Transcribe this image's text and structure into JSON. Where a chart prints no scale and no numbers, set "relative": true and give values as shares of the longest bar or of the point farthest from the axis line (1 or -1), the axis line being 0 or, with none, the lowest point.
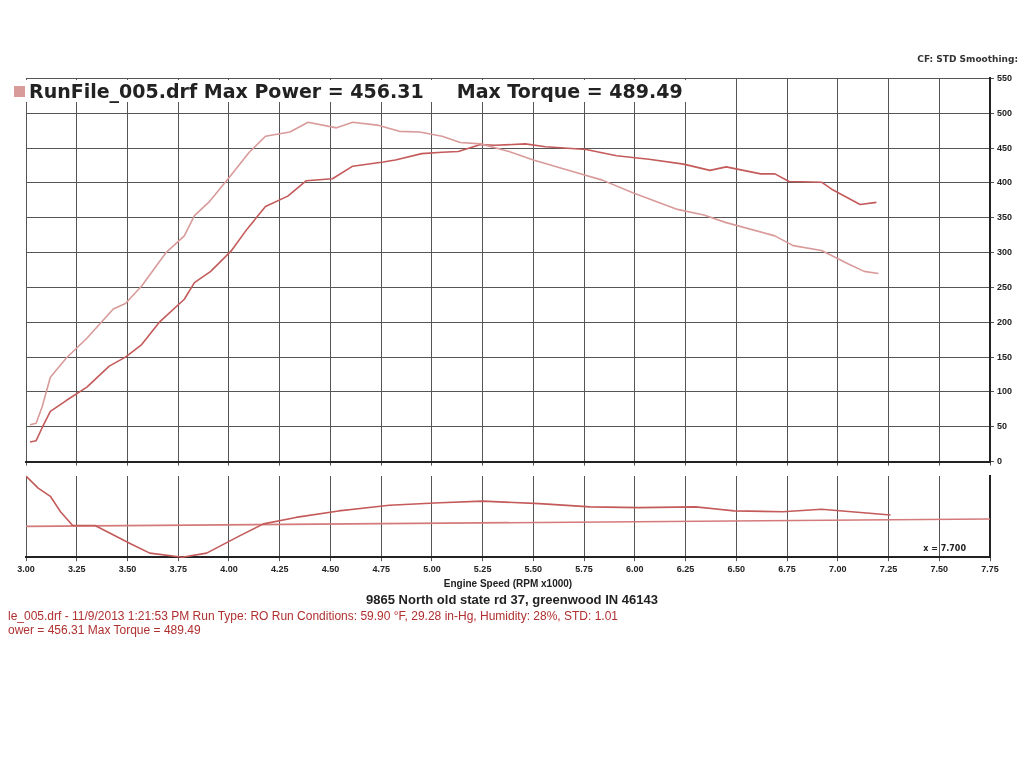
{
  "chart_data": [
    {
      "type": "line",
      "title": "RunFile_005.drf Max Power = 456.31     Max Torque = 489.49",
      "annotations": [
        "CF: STD  Smoothing:"
      ],
      "xlim": [
        3,
        7.75
      ],
      "xticks": [
        {
          "value": 3,
          "label": null
        },
        {
          "value": 3.25,
          "label": null
        },
        {
          "value": 3.5,
          "label": null
        },
        {
          "value": 3.75,
          "label": null
        },
        {
          "value": 4,
          "label": null
        },
        {
          "value": 4.25,
          "label": null
        },
        {
          "value": 4.5,
          "label": null
        },
        {
          "value": 4.75,
          "label": null
        },
        {
          "value": 5,
          "label": null
        },
        {
          "value": 5.25,
          "label": null
        },
        {
          "value": 5.5,
          "label": null
        },
        {
          "value": 5.75,
          "label": null
        },
        {
          "value": 6,
          "label": null
        },
        {
          "value": 6.25,
          "label": null
        },
        {
          "value": 6.5,
          "label": null
        },
        {
          "value": 6.75,
          "label": null
        },
        {
          "value": 7,
          "label": null
        },
        {
          "value": 7.25,
          "label": null
        },
        {
          "value": 7.5,
          "label": null
        },
        {
          "value": 7.75,
          "label": null
        }
      ],
      "ylim": [
        0,
        550
      ],
      "yticks": [
        0,
        50,
        100,
        150,
        200,
        250,
        300,
        350,
        400,
        450,
        500,
        550
      ],
      "tick_labels": "y",
      "grid": true,
      "marker": "none",
      "line_style": "solid",
      "series": [
        {
          "color": "#d99a9a",
          "x": [
            3.02,
            3.05,
            3.08,
            3.12,
            3.2,
            3.3,
            3.43,
            3.49,
            3.57,
            3.69,
            3.78,
            3.83,
            3.9,
            4.01,
            4.1,
            4.18,
            4.3,
            4.39,
            4.53,
            4.61,
            4.73,
            4.84,
            4.94,
            5.05,
            5.14,
            5.24,
            5.38,
            5.5,
            5.71,
            5.84,
            5.99,
            6.21,
            6.34,
            6.45,
            6.69,
            6.78,
            6.92,
            7.05,
            7.13,
            7.2
          ],
          "values": [
            53,
            55,
            79,
            121,
            149,
            177,
            219,
            227,
            252,
            300,
            324,
            353,
            372,
            411,
            444,
            467,
            473,
            487,
            479,
            487,
            483,
            474,
            473,
            467,
            458,
            456,
            445,
            433,
            415,
            404,
            386,
            362,
            354,
            343,
            324,
            310,
            303,
            284,
            273,
            270
          ]
        },
        {
          "color": "#c45a5a",
          "x": [
            3.02,
            3.05,
            3.08,
            3.12,
            3.2,
            3.3,
            3.41,
            3.49,
            3.57,
            3.66,
            3.78,
            3.83,
            3.91,
            4.01,
            4.09,
            4.18,
            4.29,
            4.38,
            4.51,
            4.61,
            4.76,
            4.82,
            4.95,
            5.05,
            5.13,
            5.24,
            5.31,
            5.46,
            5.56,
            5.76,
            5.91,
            6.07,
            6.24,
            6.37,
            6.45,
            6.62,
            6.69,
            6.76,
            6.92,
            6.97,
            7.11,
            7.19
          ],
          "values": [
            28,
            30,
            49,
            72,
            88,
            107,
            137,
            150,
            168,
            201,
            233,
            257,
            273,
            302,
            334,
            366,
            381,
            403,
            406,
            424,
            430,
            433,
            442,
            444,
            445,
            455,
            454,
            456,
            452,
            448,
            439,
            434,
            427,
            418,
            423,
            413,
            413,
            402,
            401,
            391,
            369,
            372
          ]
        }
      ]
    },
    {
      "type": "line",
      "relative": true,
      "xlabel": "Engine Speed (RPM x1000)",
      "annotations": [
        "x = 7.700",
        "9865 North old state rd 37, greenwood IN 46143",
        "le_005.drf - 11/9/2013 1:21:53 PM  Run Type: RO  Run Conditions: 59.90 °F, 29.28 in-Hg,  Humidity:  28%,  STD: 1.01",
        "ower = 456.31  Max Torque = 489.49"
      ],
      "xlim": [
        3,
        7.75
      ],
      "xticks": [
        {
          "value": 3,
          "label": "3.00"
        },
        {
          "value": 3.25,
          "label": "3.25"
        },
        {
          "value": 3.5,
          "label": "3.50"
        },
        {
          "value": 3.75,
          "label": "3.75"
        },
        {
          "value": 4,
          "label": "4.00"
        },
        {
          "value": 4.25,
          "label": "4.25"
        },
        {
          "value": 4.5,
          "label": "4.50"
        },
        {
          "value": 4.75,
          "label": "4.75"
        },
        {
          "value": 5,
          "label": "5.00"
        },
        {
          "value": 5.25,
          "label": "5.25"
        },
        {
          "value": 5.5,
          "label": "5.50"
        },
        {
          "value": 5.75,
          "label": "5.75"
        },
        {
          "value": 6,
          "label": "6.00"
        },
        {
          "value": 6.25,
          "label": "6.25"
        },
        {
          "value": 6.5,
          "label": "6.50"
        },
        {
          "value": 6.75,
          "label": "6.75"
        },
        {
          "value": 7,
          "label": "7.00"
        },
        {
          "value": 7.25,
          "label": "7.25"
        },
        {
          "value": 7.5,
          "label": "7.50"
        },
        {
          "value": 7.75,
          "label": "7.75"
        }
      ],
      "tick_labels": "x",
      "grid": "x",
      "marker": "none",
      "line_style": "solid",
      "series": [
        {
          "color": "#c45a5a",
          "x": [
            3,
            3.06,
            3.12,
            3.17,
            3.23,
            3.34,
            3.52,
            3.61,
            3.77,
            3.89,
            4.05,
            4.17,
            4.33,
            4.54,
            4.79,
            5.04,
            5.25,
            5.53,
            5.78,
            6.02,
            6.3,
            6.49,
            6.73,
            6.92,
            7.26
          ],
          "values": [
            1,
            0.85,
            0.75,
            0.56,
            0.39,
            0.39,
            0.16,
            0.05,
            0,
            0.05,
            0.26,
            0.41,
            0.49,
            0.57,
            0.64,
            0.67,
            0.69,
            0.66,
            0.62,
            0.61,
            0.62,
            0.57,
            0.56,
            0.59,
            0.52
          ]
        },
        {
          "color": "#d47a7a",
          "x": [
            3,
            7.75
          ],
          "values": [
            0.38,
            0.47
          ]
        }
      ]
    }
  ]
}
